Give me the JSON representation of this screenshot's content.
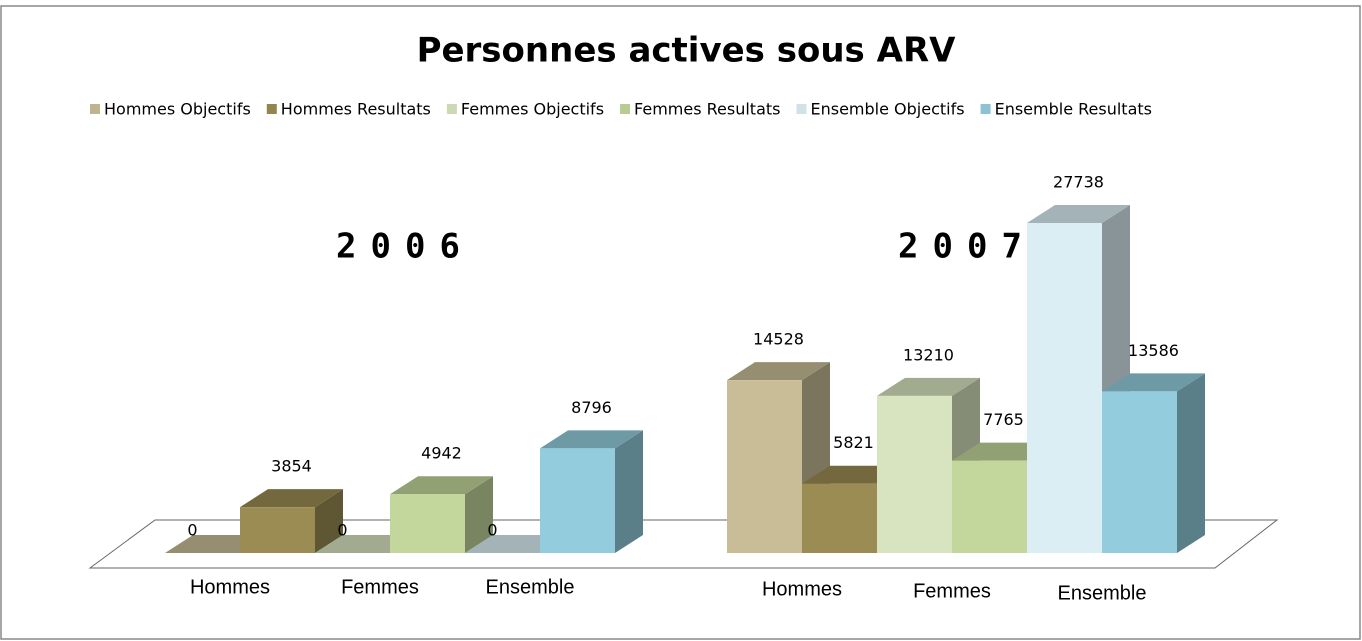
{
  "chart_data": {
    "type": "bar3d",
    "title": "Personnes actives sous ARV",
    "groups": [
      "2006",
      "2007"
    ],
    "subcategories": [
      [
        "Hommes",
        "Femmes",
        "Ensemble"
      ],
      [
        "Hommes",
        "Femmes",
        "Ensemble"
      ]
    ],
    "series": [
      {
        "name": "Hommes Objectifs",
        "color": "#c8bd96",
        "values": [
          0,
          14528
        ]
      },
      {
        "name": "Hommes Resultats",
        "color": "#9a8c52",
        "values": [
          3854,
          5821
        ]
      },
      {
        "name": "Femmes Objectifs",
        "color": "#d8e4bf",
        "values": [
          0,
          13210
        ]
      },
      {
        "name": "Femmes Resultats",
        "color": "#c3d69b",
        "values": [
          4942,
          7765
        ]
      },
      {
        "name": "Ensemble Objectifs",
        "color": "#dbeef4",
        "values": [
          0,
          27738
        ]
      },
      {
        "name": "Ensemble Resultats",
        "color": "#93cddd",
        "values": [
          8796,
          13586
        ]
      }
    ],
    "legend": "top"
  }
}
